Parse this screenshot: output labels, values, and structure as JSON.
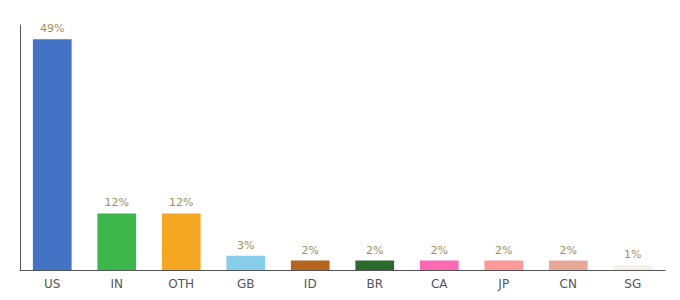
{
  "chart_data": {
    "type": "bar",
    "categories": [
      "US",
      "IN",
      "OTH",
      "GB",
      "ID",
      "BR",
      "CA",
      "JP",
      "CN",
      "SG"
    ],
    "values": [
      49,
      12,
      12,
      3,
      2,
      2,
      2,
      2,
      2,
      1
    ],
    "value_labels": [
      "49%",
      "12%",
      "12%",
      "3%",
      "2%",
      "2%",
      "2%",
      "2%",
      "2%",
      "1%"
    ],
    "colors": [
      "#4472c4",
      "#3cb54a",
      "#f5a623",
      "#87ceeb",
      "#b5651d",
      "#2d6a2d",
      "#ff69b4",
      "#ff9999",
      "#e8a898",
      "#f5f0e8"
    ],
    "ylim": [
      0,
      52
    ],
    "grid": false,
    "data_labels": true,
    "tick_labels": "x"
  }
}
